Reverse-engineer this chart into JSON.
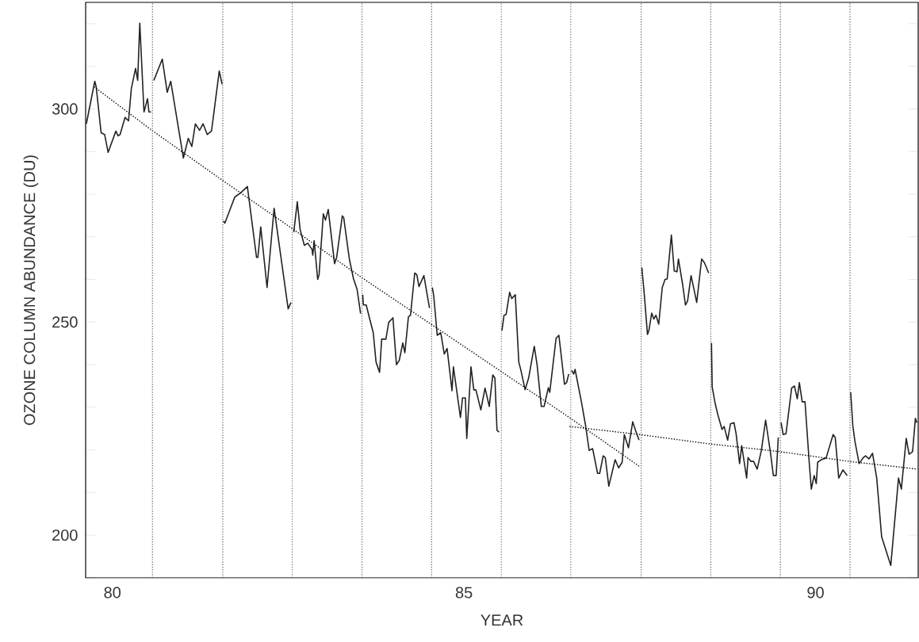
{
  "chart_data": {
    "type": "line",
    "xlabel": "YEAR",
    "ylabel": "OZONE COLUMN ABUNDANCE (DU)",
    "xlim": [
      79.62,
      91.46
    ],
    "ylim": [
      190,
      325
    ],
    "xticks": [
      80,
      85,
      90
    ],
    "yticks": [
      {
        "value": 190,
        "label": null
      },
      200,
      {
        "value": 210,
        "label": null
      },
      {
        "value": 220,
        "label": null
      },
      {
        "value": 230,
        "label": null
      },
      {
        "value": 240,
        "label": null
      },
      250,
      {
        "value": 260,
        "label": null
      },
      {
        "value": 270,
        "label": null
      },
      {
        "value": 280,
        "label": null
      },
      {
        "value": 290,
        "label": null
      },
      300,
      {
        "value": 310,
        "label": null
      },
      {
        "value": 320,
        "label": null
      }
    ],
    "grid": false,
    "marker": "none",
    "line_style": "solid",
    "series": [
      {
        "color": "#222222",
        "x": [
          79.63,
          79.75,
          79.77,
          79.84,
          79.89,
          79.94,
          80.05,
          80.08,
          80.11,
          80.18,
          80.23,
          80.27,
          80.33,
          80.36,
          80.39,
          80.45,
          80.5,
          80.52,
          80.55,
          80.57,
          80.59,
          80.71,
          80.78,
          80.83,
          81.01,
          81.08,
          81.13,
          81.18,
          81.24,
          81.29,
          81.35,
          81.41,
          81.52,
          81.56,
          81.57,
          81.58,
          81.6,
          81.74,
          81.83,
          81.92,
          82.05,
          82.07,
          82.11,
          82.2,
          82.3,
          82.5,
          82.54,
          82.56,
          82.58,
          82.63,
          82.67,
          82.73,
          82.78,
          82.84,
          82.85,
          82.87,
          82.92,
          82.94,
          83.0,
          83.03,
          83.07,
          83.16,
          83.19,
          83.27,
          83.29,
          83.37,
          83.43,
          83.48,
          83.53,
          83.55,
          83.56,
          83.57,
          83.61,
          83.66,
          83.71,
          83.75,
          83.8,
          83.83,
          83.89,
          83.93,
          83.99,
          84.04,
          84.08,
          84.13,
          84.16,
          84.21,
          84.24,
          84.3,
          84.33,
          84.36,
          84.43,
          84.51,
          84.54,
          84.55,
          84.57,
          84.62,
          84.67,
          84.72,
          84.76,
          84.83,
          84.85,
          84.95,
          84.98,
          85.02,
          85.04,
          85.1,
          85.14,
          85.17,
          85.24,
          85.3,
          85.36,
          85.41,
          85.44,
          85.47,
          85.5,
          85.53,
          85.54,
          85.57,
          85.6,
          85.65,
          85.68,
          85.73,
          85.78,
          85.81,
          85.87,
          85.92,
          86.0,
          86.04,
          86.1,
          86.14,
          86.2,
          86.22,
          86.31,
          86.35,
          86.43,
          86.46,
          86.49,
          86.52,
          86.53,
          86.56,
          86.58,
          86.67,
          86.73,
          86.78,
          86.83,
          86.9,
          86.93,
          86.98,
          87.01,
          87.06,
          87.15,
          87.2,
          87.25,
          87.28,
          87.34,
          87.4,
          87.44,
          87.49,
          87.52,
          87.53,
          87.54,
          87.56,
          87.61,
          87.63,
          87.67,
          87.7,
          87.73,
          87.77,
          87.82,
          87.86,
          87.89,
          87.95,
          87.99,
          88.03,
          88.05,
          88.11,
          88.15,
          88.18,
          88.23,
          88.31,
          88.38,
          88.42,
          88.48,
          88.51,
          88.52,
          88.53,
          88.57,
          88.61,
          88.67,
          88.7,
          88.75,
          88.79,
          88.84,
          88.87,
          88.92,
          88.95,
          89.02,
          89.04,
          89.08,
          89.12,
          89.17,
          89.23,
          89.29,
          89.36,
          89.4,
          89.44,
          89.47,
          89.5,
          89.51,
          89.54,
          89.58,
          89.66,
          89.7,
          89.74,
          89.77,
          89.81,
          89.85,
          89.91,
          89.94,
          89.98,
          90.01,
          90.03,
          90.08,
          90.15,
          90.25,
          90.28,
          90.33,
          90.39,
          90.45,
          90.49,
          90.5,
          90.53,
          90.56,
          90.62,
          90.68,
          90.71,
          90.76,
          90.81,
          90.87,
          90.94,
          91.07,
          91.18,
          91.22,
          91.29,
          91.33,
          91.38,
          91.42,
          91.44
        ],
        "values": [
          296.5,
          306.5,
          305.2,
          294.4,
          294.0,
          289.8,
          294.8,
          293.7,
          294.0,
          298.0,
          297.2,
          304.8,
          309.5,
          306.7,
          320.1,
          299.3,
          302.4,
          299.3,
          299.3,
          null,
          306.7,
          311.7,
          303.9,
          306.5,
          288.5,
          293.1,
          291.2,
          296.5,
          295.0,
          296.5,
          294.0,
          294.8,
          308.9,
          305.8,
          null,
          273.7,
          273.2,
          279.3,
          280.4,
          281.8,
          265.2,
          265.2,
          272.3,
          258.1,
          276.7,
          253.1,
          254.6,
          null,
          271.1,
          278.2,
          271.7,
          268.0,
          268.5,
          267.0,
          265.7,
          269.1,
          260.0,
          261.1,
          275.4,
          273.9,
          276.4,
          263.7,
          265.2,
          274.9,
          274.5,
          264.8,
          260.1,
          257.7,
          252.0,
          null,
          256.4,
          254.0,
          254.0,
          250.7,
          247.5,
          240.6,
          238.2,
          246.0,
          246.0,
          249.9,
          251.0,
          240.0,
          241.0,
          245.1,
          242.8,
          251.2,
          251.6,
          261.5,
          261.1,
          258.3,
          260.9,
          253.3,
          null,
          258.1,
          256.2,
          246.9,
          247.5,
          242.5,
          243.8,
          233.9,
          239.5,
          227.6,
          232.2,
          232.2,
          222.7,
          239.5,
          234.1,
          234.1,
          229.4,
          234.5,
          230.2,
          237.6,
          236.9,
          224.6,
          224.2,
          null,
          248.0,
          251.6,
          251.8,
          257.0,
          255.5,
          256.4,
          240.6,
          238.7,
          234.1,
          236.9,
          244.3,
          240.0,
          230.2,
          230.2,
          234.6,
          233.5,
          246.2,
          246.9,
          235.4,
          235.8,
          237.8,
          null,
          238.7,
          237.8,
          238.9,
          231.3,
          225.7,
          219.9,
          220.3,
          214.5,
          214.5,
          218.6,
          218.2,
          211.5,
          217.7,
          215.8,
          217.1,
          223.6,
          220.5,
          226.6,
          224.6,
          222.3,
          null,
          262.8,
          260.9,
          257.4,
          247.1,
          248.0,
          252.1,
          250.7,
          251.6,
          249.5,
          258.1,
          260.0,
          260.1,
          270.4,
          262.0,
          261.8,
          264.8,
          258.8,
          254.0,
          254.9,
          260.9,
          254.6,
          264.8,
          263.9,
          261.5,
          null,
          245.1,
          234.8,
          231.1,
          228.3,
          224.8,
          225.5,
          222.3,
          226.1,
          226.4,
          223.8,
          216.8,
          221.0,
          213.4,
          218.2,
          217.3,
          217.3,
          215.5,
          219.9,
          227.0,
          219.2,
          214.0,
          214.0,
          222.9,
          null,
          226.4,
          223.6,
          223.8,
          234.5,
          235.0,
          232.0,
          235.8,
          231.3,
          231.3,
          217.1,
          210.8,
          214.0,
          212.1,
          217.1,
          217.7,
          218.1,
          223.6,
          222.9,
          213.4,
          215.3,
          214.0,
          null,
          233.5,
          225.7,
          222.0,
          216.8,
          218.2,
          218.6,
          217.9,
          219.2,
          213.4,
          199.6,
          192.9,
          213.4,
          210.8,
          222.7,
          219.0,
          219.6,
          227.4,
          226.4
        ]
      },
      {
        "color": "#000000",
        "line_style": "dotted",
        "x": [
          79.74,
          80.56,
          81.57,
          82.56,
          83.54,
          84.55,
          85.52,
          86.5,
          87.49
        ],
        "values": [
          305.2,
          295.0,
          283.2,
          271.9,
          260.5,
          249.3,
          238.5,
          227.6,
          216.2
        ]
      },
      {
        "color": "#000000",
        "line_style": "dotted",
        "x": [
          86.5,
          87.5,
          88.5,
          89.49,
          90.48,
          91.45
        ],
        "values": [
          225.5,
          223.6,
          221.4,
          219.6,
          217.3,
          215.5
        ]
      }
    ],
    "ref_lines": [
      {
        "axis": "x",
        "value": 80.57,
        "color": "#555555",
        "line_style": "dotted"
      },
      {
        "axis": "x",
        "value": 81.57,
        "color": "#555555",
        "line_style": "dotted"
      },
      {
        "axis": "x",
        "value": 82.56,
        "color": "#555555",
        "line_style": "dotted"
      },
      {
        "axis": "x",
        "value": 83.55,
        "color": "#555555",
        "line_style": "dotted"
      },
      {
        "axis": "x",
        "value": 84.54,
        "color": "#555555",
        "line_style": "dotted"
      },
      {
        "axis": "x",
        "value": 85.53,
        "color": "#555555",
        "line_style": "dotted"
      },
      {
        "axis": "x",
        "value": 86.52,
        "color": "#555555",
        "line_style": "dotted"
      },
      {
        "axis": "x",
        "value": 87.52,
        "color": "#555555",
        "line_style": "dotted"
      },
      {
        "axis": "x",
        "value": 88.51,
        "color": "#555555",
        "line_style": "dotted"
      },
      {
        "axis": "x",
        "value": 89.5,
        "color": "#555555",
        "line_style": "dotted"
      },
      {
        "axis": "x",
        "value": 90.49,
        "color": "#555555",
        "line_style": "dotted"
      }
    ]
  }
}
